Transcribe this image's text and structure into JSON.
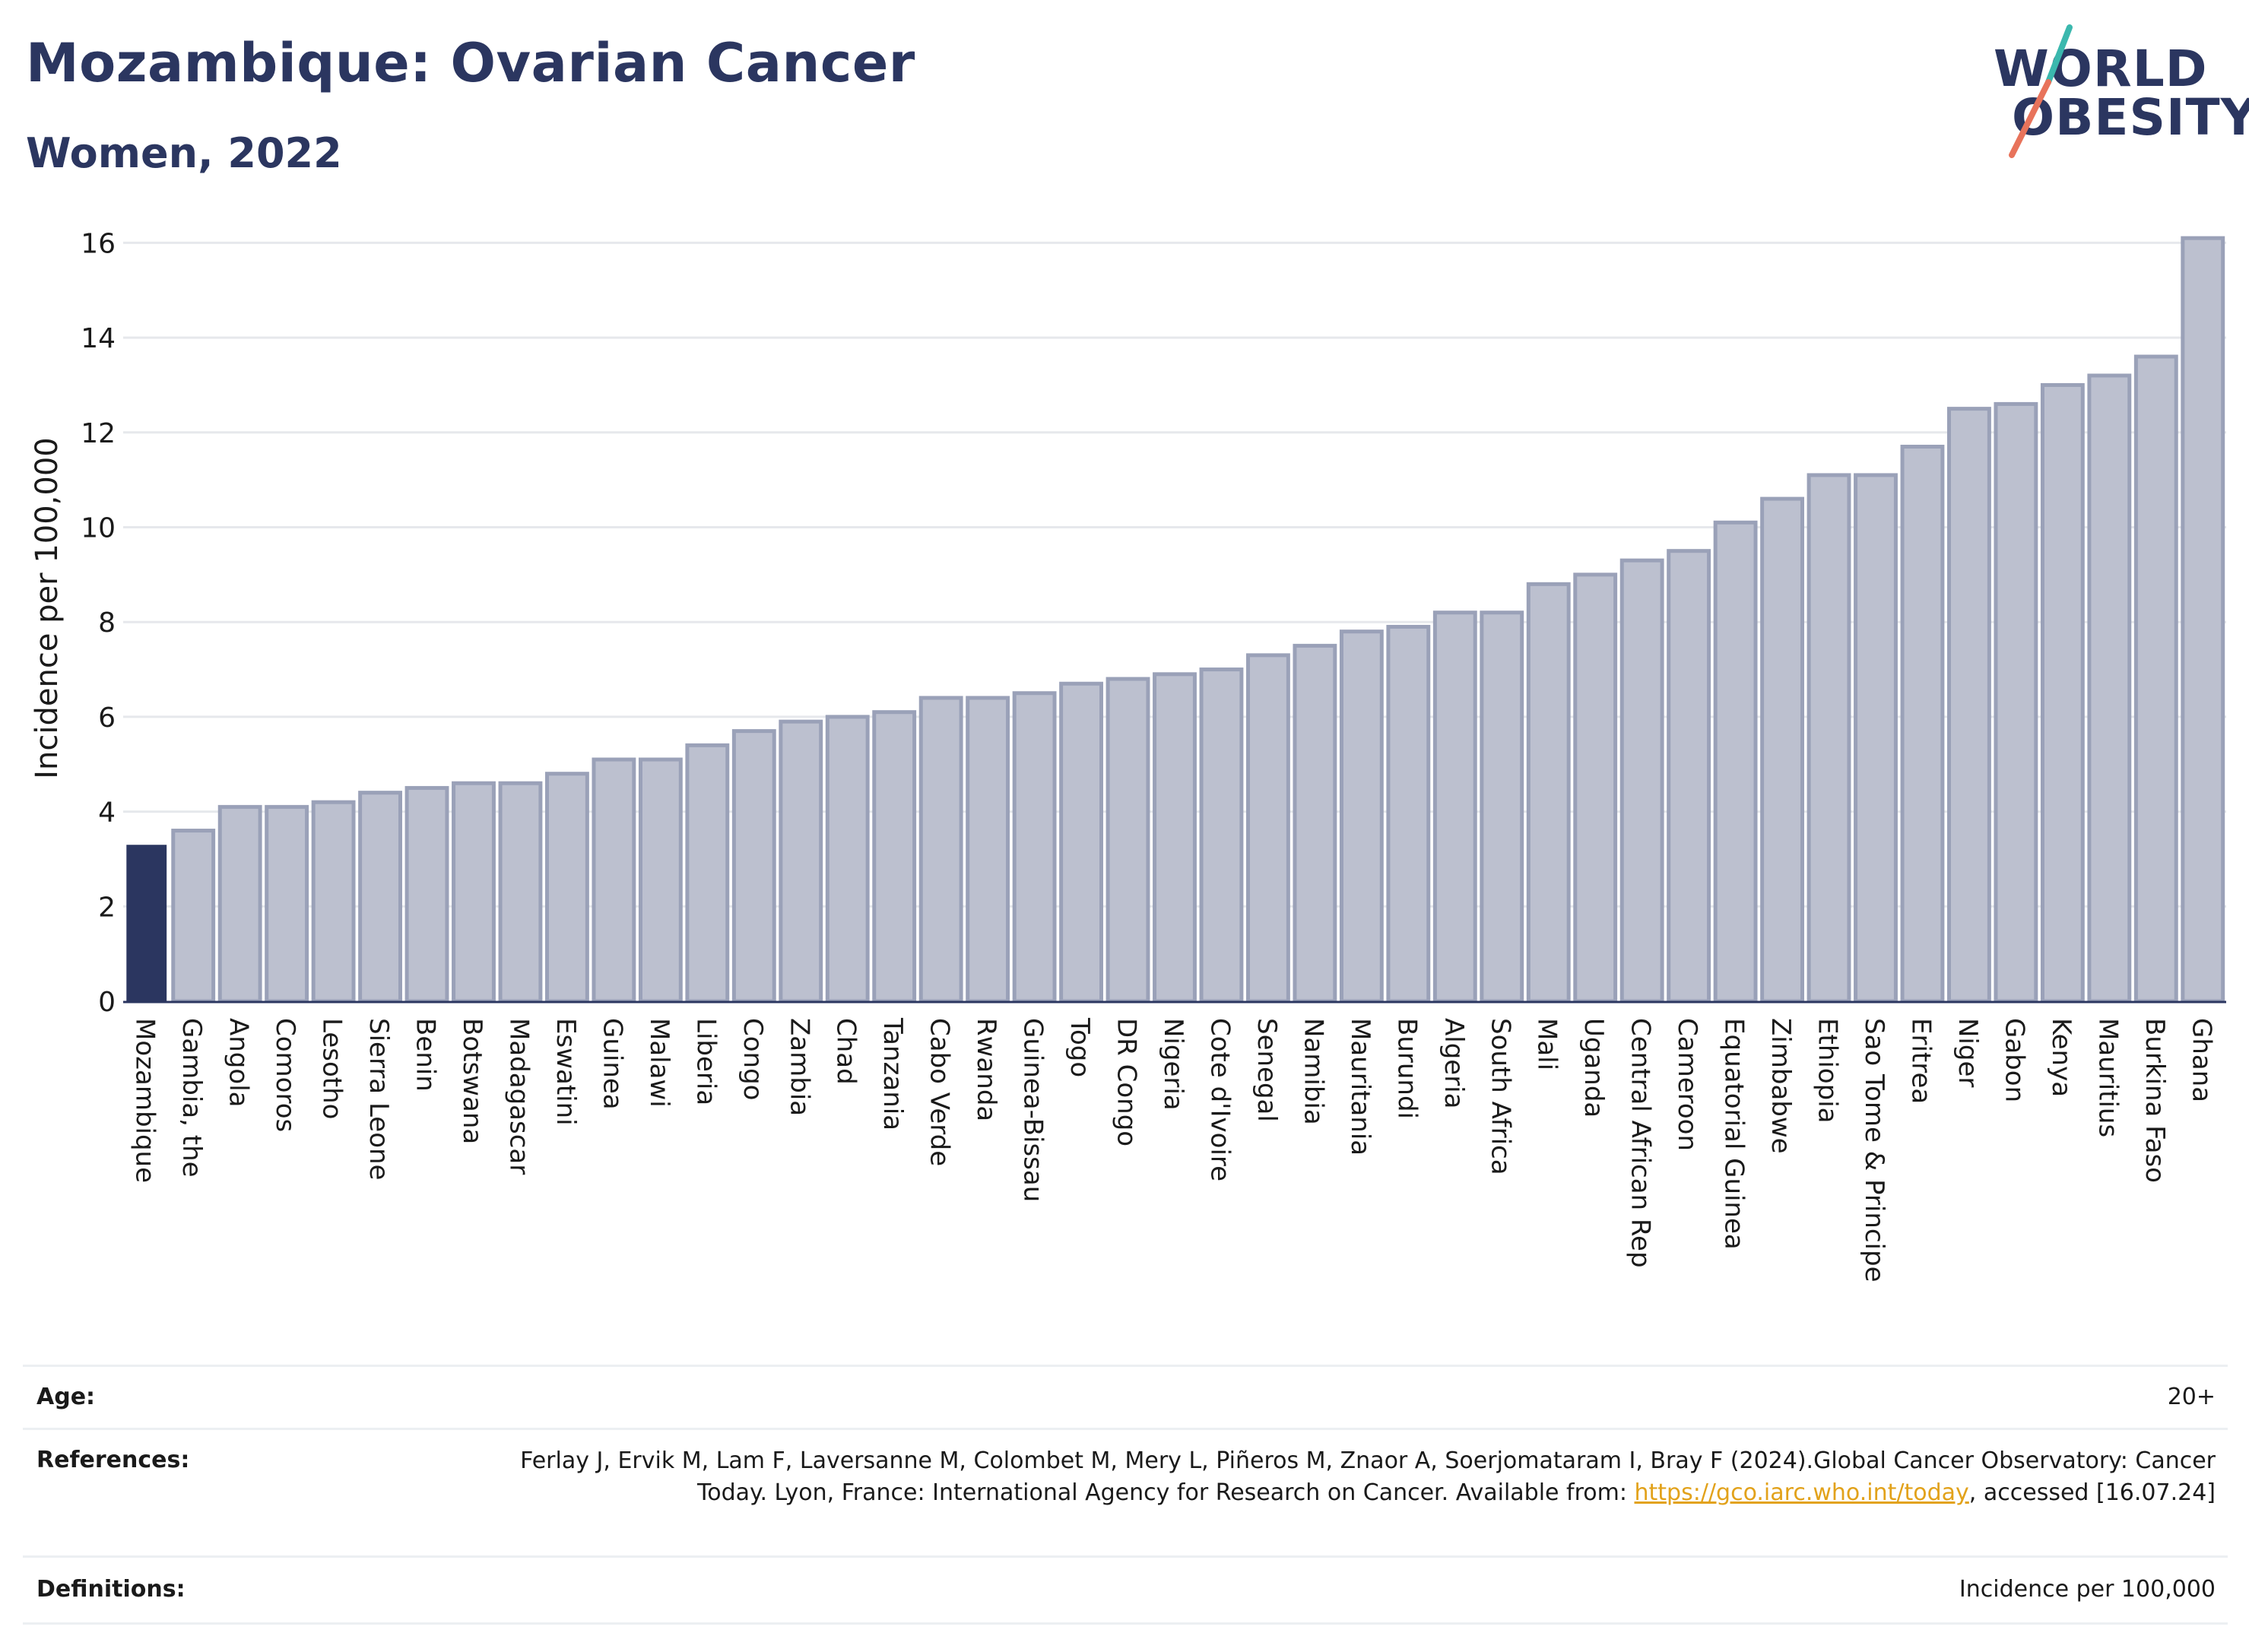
{
  "header": {
    "title": "Mozambique: Ovarian Cancer",
    "subtitle": "Women, 2022"
  },
  "logo": {
    "line1": "WORLD",
    "line2": "OBESITY",
    "colors": {
      "text": "#2b3660",
      "slash_top": "#3bb8ae",
      "slash_bottom": "#e8735b"
    }
  },
  "colors": {
    "highlight_bar": "#2b3660",
    "other_bar_fill": "#bcc0cf",
    "other_bar_stroke": "#9aa1b8",
    "grid": "#e6e8ec",
    "axis": "#2b3660"
  },
  "chart_data": {
    "type": "bar",
    "ylabel": "Incidence per 100,000",
    "xlabel": "",
    "ylim": [
      0,
      16.6
    ],
    "yticks": [
      0,
      2,
      4,
      6,
      8,
      10,
      12,
      14,
      16
    ],
    "grid": true,
    "highlight": "Mozambique",
    "categories": [
      "Mozambique",
      "Gambia, the",
      "Angola",
      "Comoros",
      "Lesotho",
      "Sierra Leone",
      "Benin",
      "Botswana",
      "Madagascar",
      "Eswatini",
      "Guinea",
      "Malawi",
      "Liberia",
      "Congo",
      "Zambia",
      "Chad",
      "Tanzania",
      "Cabo Verde",
      "Rwanda",
      "Guinea-Bissau",
      "Togo",
      "DR Congo",
      "Nigeria",
      "Cote d'Ivoire",
      "Senegal",
      "Namibia",
      "Mauritania",
      "Burundi",
      "Algeria",
      "South Africa",
      "Mali",
      "Uganda",
      "Central African Rep",
      "Cameroon",
      "Equatorial Guinea",
      "Zimbabwe",
      "Ethiopia",
      "Sao Tome & Principe",
      "Eritrea",
      "Niger",
      "Gabon",
      "Kenya",
      "Mauritius",
      "Burkina Faso",
      "Ghana"
    ],
    "values": [
      3.3,
      3.6,
      4.1,
      4.1,
      4.2,
      4.4,
      4.5,
      4.6,
      4.6,
      4.8,
      5.1,
      5.1,
      5.4,
      5.7,
      5.9,
      6.0,
      6.1,
      6.4,
      6.4,
      6.5,
      6.7,
      6.8,
      6.9,
      7.0,
      7.3,
      7.5,
      7.8,
      7.9,
      8.2,
      8.2,
      8.8,
      9.0,
      9.3,
      9.5,
      10.1,
      10.6,
      11.1,
      11.1,
      11.7,
      12.5,
      12.6,
      13.0,
      13.2,
      13.6,
      16.1
    ]
  },
  "footer": {
    "age_label": "Age:",
    "age_value": "20+",
    "references_label": "References:",
    "references_text": "Ferlay J, Ervik M, Lam F, Laversanne M, Colombet M, Mery L, Piñeros M, Znaor A, Soerjomataram I, Bray F (2024).Global Cancer Observatory: Cancer Today. Lyon, France: International Agency for Research on Cancer. Available from: ",
    "references_link": "https://gco.iarc.who.int/today",
    "references_suffix": ", accessed [16.07.24]",
    "definitions_label": "Definitions:",
    "definitions_value": "Incidence per 100,000"
  }
}
